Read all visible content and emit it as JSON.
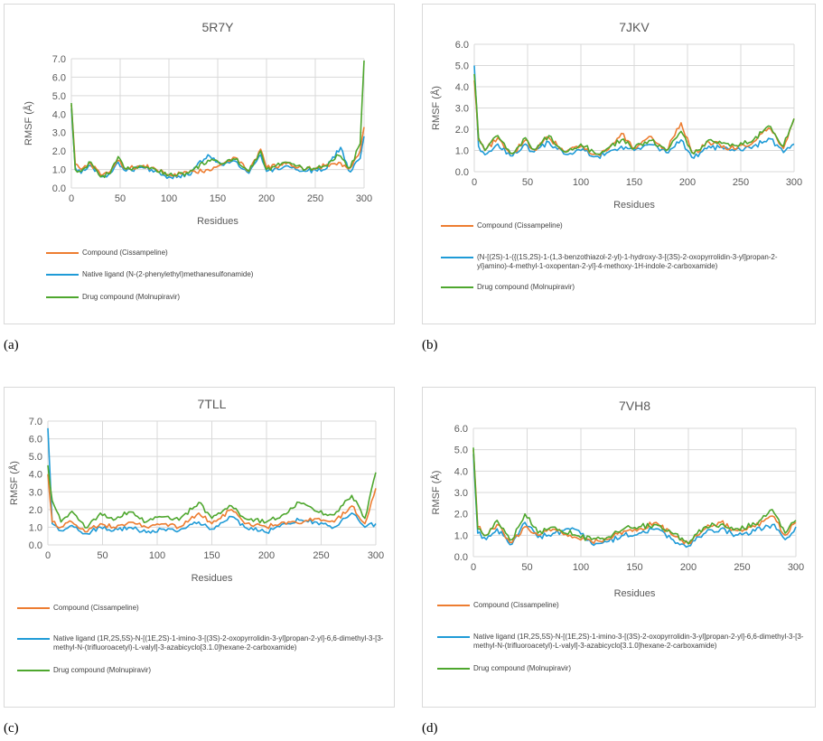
{
  "colors": {
    "compound": "#ED7D31",
    "native": "#1F9BD7",
    "drug": "#4EA72E",
    "grid": "#d9d9d9"
  },
  "chart_data": [
    {
      "id": "a",
      "type": "line",
      "title": "5R7Y",
      "xlabel": "Residues",
      "ylabel": "RMSF (Å)",
      "xlim": [
        0,
        300
      ],
      "ylim": [
        0,
        7
      ],
      "x_ticks": [
        "0",
        "50",
        "100",
        "150",
        "200",
        "250",
        "300"
      ],
      "y_ticks": [
        "0.0",
        "1.0",
        "2.0",
        "3.0",
        "4.0",
        "5.0",
        "6.0",
        "7.0"
      ],
      "series": [
        {
          "name": "Compound (Cissampeline)",
          "key": "compound",
          "x": [
            0,
            4,
            10,
            20,
            30,
            40,
            48,
            55,
            70,
            82,
            100,
            120,
            140,
            155,
            167,
            182,
            194,
            200,
            220,
            240,
            260,
            275,
            285,
            296,
            300
          ],
          "values": [
            4.5,
            1.3,
            1.0,
            1.3,
            0.7,
            0.9,
            1.5,
            1.0,
            1.2,
            1.1,
            0.7,
            0.8,
            1.0,
            1.3,
            1.7,
            0.9,
            2.1,
            1.1,
            1.3,
            1.0,
            1.2,
            1.4,
            1.0,
            2.0,
            3.3
          ]
        },
        {
          "name": "Native ligand (N-(2-phenylethyl)methanesulfonamide)",
          "key": "native",
          "x": [
            0,
            4,
            10,
            20,
            30,
            40,
            48,
            55,
            70,
            82,
            100,
            120,
            140,
            155,
            167,
            182,
            194,
            200,
            220,
            240,
            260,
            276,
            285,
            296,
            300
          ],
          "values": [
            4.3,
            1.1,
            0.8,
            1.2,
            0.6,
            0.8,
            1.4,
            0.9,
            1.1,
            1.0,
            0.6,
            0.7,
            1.8,
            1.2,
            1.5,
            0.8,
            1.8,
            0.9,
            1.2,
            0.9,
            1.0,
            2.2,
            0.8,
            1.6,
            2.8
          ]
        },
        {
          "name": "Drug compound (Molnupiravir)",
          "key": "drug",
          "x": [
            0,
            4,
            10,
            20,
            30,
            40,
            48,
            55,
            70,
            82,
            100,
            120,
            140,
            155,
            167,
            182,
            194,
            200,
            220,
            240,
            260,
            275,
            285,
            296,
            300
          ],
          "values": [
            4.6,
            1.0,
            0.9,
            1.4,
            0.6,
            0.8,
            1.7,
            1.0,
            1.2,
            1.1,
            0.7,
            0.8,
            1.5,
            1.3,
            1.6,
            0.9,
            2.0,
            1.0,
            1.4,
            1.0,
            1.2,
            1.8,
            1.0,
            2.4,
            6.9
          ]
        }
      ]
    },
    {
      "id": "b",
      "type": "line",
      "title": "7JKV",
      "xlabel": "Residues",
      "ylabel": "RMSF (Å)",
      "xlim": [
        0,
        300
      ],
      "ylim": [
        0,
        6
      ],
      "x_ticks": [
        "0",
        "50",
        "100",
        "150",
        "200",
        "250",
        "300"
      ],
      "y_ticks": [
        "0.0",
        "1.0",
        "2.0",
        "3.0",
        "4.0",
        "5.0",
        "6.0"
      ],
      "series": [
        {
          "name": "Compound (Cissampeline)",
          "key": "compound",
          "x": [
            0,
            4,
            10,
            22,
            35,
            48,
            55,
            70,
            85,
            100,
            115,
            125,
            138,
            150,
            165,
            180,
            194,
            205,
            220,
            240,
            260,
            277,
            290,
            300
          ],
          "values": [
            4.3,
            1.5,
            1.0,
            1.6,
            0.8,
            1.5,
            1.0,
            1.6,
            0.9,
            1.2,
            0.8,
            1.0,
            1.8,
            1.1,
            1.7,
            1.0,
            2.3,
            0.8,
            1.4,
            1.1,
            1.3,
            2.1,
            1.1,
            2.5
          ]
        },
        {
          "name": " (N-[(2S)-1-({(1S,2S)-1-(1,3-benzothiazol-2-yl)-1-hydroxy-3-[(3S)-2-oxopyrrolidin-3-yl]propan-2-yl}amino)-4-methyl-1-oxopentan-2-yl]-4-methoxy-1H-indole-2-carboxamide)",
          "key": "native",
          "x": [
            0,
            4,
            10,
            22,
            35,
            48,
            55,
            70,
            85,
            100,
            115,
            125,
            138,
            150,
            165,
            180,
            194,
            205,
            220,
            240,
            260,
            277,
            290,
            300
          ],
          "values": [
            5.0,
            1.2,
            0.8,
            1.3,
            0.7,
            1.3,
            0.9,
            1.4,
            0.8,
            1.0,
            0.7,
            0.9,
            1.2,
            1.0,
            1.3,
            0.9,
            1.5,
            0.6,
            1.2,
            1.0,
            1.1,
            1.6,
            0.9,
            1.3
          ]
        },
        {
          "name": "Drug compound (Molnupiravir)",
          "key": "drug",
          "x": [
            0,
            4,
            10,
            22,
            35,
            48,
            55,
            70,
            85,
            100,
            115,
            125,
            138,
            150,
            165,
            180,
            194,
            205,
            220,
            240,
            260,
            277,
            290,
            300
          ],
          "values": [
            4.6,
            1.6,
            1.0,
            1.7,
            0.8,
            1.6,
            1.0,
            1.7,
            0.9,
            1.3,
            0.8,
            1.1,
            1.5,
            1.1,
            1.5,
            1.0,
            1.9,
            0.8,
            1.5,
            1.2,
            1.4,
            2.2,
            1.2,
            2.5
          ]
        }
      ]
    },
    {
      "id": "c",
      "type": "line",
      "title": "7TLL",
      "xlabel": "Residues",
      "ylabel": "RMSF (Å)",
      "xlim": [
        0,
        300
      ],
      "ylim": [
        0,
        7
      ],
      "x_ticks": [
        "0",
        "50",
        "100",
        "150",
        "200",
        "250",
        "300"
      ],
      "y_ticks": [
        "0.0",
        "1.0",
        "2.0",
        "3.0",
        "4.0",
        "5.0",
        "6.0",
        "7.0"
      ],
      "series": [
        {
          "name": "Compound (Cissampeline)",
          "key": "compound",
          "x": [
            0,
            4,
            12,
            22,
            35,
            48,
            60,
            75,
            90,
            105,
            120,
            138,
            150,
            168,
            180,
            200,
            215,
            230,
            245,
            262,
            278,
            290,
            300
          ],
          "values": [
            4.0,
            1.3,
            1.0,
            1.3,
            0.7,
            1.2,
            1.0,
            1.3,
            1.0,
            1.2,
            1.0,
            1.8,
            1.2,
            2.0,
            1.2,
            1.0,
            1.3,
            1.2,
            1.5,
            1.3,
            2.2,
            1.2,
            3.2
          ]
        },
        {
          "name": "Native ligand (1R,2S,5S)-N-[(1E,2S)-1-imino-3-[(3S)-2-oxopyrrolidin-3-yl]propan-2-yl]-6,6-dimethyl-3-[3-methyl-N-(trifluoroacetyl)-L-valyl]-3-azabicyclo[3.1.0]hexane-2-carboxamide)",
          "key": "native",
          "x": [
            0,
            4,
            12,
            22,
            35,
            48,
            60,
            75,
            90,
            105,
            120,
            138,
            150,
            168,
            180,
            200,
            215,
            230,
            245,
            262,
            278,
            290,
            300
          ],
          "values": [
            6.6,
            1.2,
            0.8,
            1.1,
            0.6,
            1.0,
            0.8,
            1.0,
            0.7,
            0.9,
            0.8,
            1.3,
            0.9,
            1.6,
            1.0,
            0.7,
            1.2,
            1.4,
            1.3,
            1.0,
            1.8,
            1.0,
            1.2
          ]
        },
        {
          "name": "Drug compound (Molnupiravir)",
          "key": "drug",
          "x": [
            0,
            4,
            12,
            22,
            35,
            48,
            60,
            75,
            90,
            105,
            120,
            138,
            150,
            168,
            180,
            200,
            215,
            230,
            245,
            262,
            278,
            290,
            300
          ],
          "values": [
            4.5,
            2.5,
            1.3,
            1.9,
            0.9,
            1.8,
            1.4,
            1.9,
            1.3,
            1.6,
            1.4,
            2.4,
            1.5,
            2.2,
            1.5,
            1.3,
            1.7,
            2.4,
            1.9,
            1.7,
            2.8,
            1.5,
            4.1
          ]
        }
      ]
    },
    {
      "id": "d",
      "type": "line",
      "title": "7VH8",
      "xlabel": "Residues",
      "ylabel": "RMSF (Å)",
      "xlim": [
        0,
        300
      ],
      "ylim": [
        0,
        6
      ],
      "x_ticks": [
        "0",
        "50",
        "100",
        "150",
        "200",
        "250",
        "300"
      ],
      "y_ticks": [
        "0.0",
        "1.0",
        "2.0",
        "3.0",
        "4.0",
        "5.0",
        "6.0"
      ],
      "series": [
        {
          "name": "Compound (Cissampeline)",
          "key": "compound",
          "x": [
            0,
            4,
            12,
            22,
            35,
            48,
            60,
            75,
            95,
            110,
            125,
            140,
            155,
            170,
            185,
            200,
            215,
            230,
            245,
            262,
            278,
            290,
            300
          ],
          "values": [
            5.0,
            1.4,
            1.0,
            1.5,
            0.6,
            1.4,
            1.0,
            1.3,
            0.9,
            0.7,
            0.8,
            1.2,
            1.3,
            1.6,
            1.0,
            0.6,
            1.3,
            1.6,
            1.2,
            1.4,
            1.9,
            1.0,
            1.6
          ]
        },
        {
          "name": "Native ligand (1R,2S,5S)-N-[(1E,2S)-1-imino-3-[(3S)-2-oxopyrrolidin-3-yl]propan-2-yl]-6,6-dimethyl-3-[3-methyl-N-(trifluoroacetyl)-L-valyl]-3-azabicyclo[3.1.0]hexane-2-carboxamide)",
          "key": "native",
          "x": [
            0,
            4,
            12,
            22,
            35,
            48,
            60,
            75,
            95,
            110,
            125,
            140,
            155,
            170,
            185,
            200,
            215,
            230,
            245,
            262,
            278,
            290,
            300
          ],
          "values": [
            4.8,
            1.1,
            0.8,
            1.3,
            0.5,
            1.6,
            0.9,
            1.1,
            1.3,
            0.6,
            0.7,
            1.0,
            1.1,
            1.3,
            0.8,
            0.5,
            1.1,
            1.3,
            1.0,
            1.2,
            1.5,
            0.8,
            1.4
          ]
        },
        {
          "name": "Drug compound (Molnupiravir)",
          "key": "drug",
          "x": [
            0,
            4,
            12,
            22,
            35,
            48,
            60,
            75,
            95,
            110,
            125,
            140,
            155,
            170,
            185,
            200,
            215,
            230,
            245,
            262,
            278,
            290,
            300
          ],
          "values": [
            5.1,
            1.3,
            1.0,
            1.7,
            0.7,
            2.0,
            1.1,
            1.4,
            1.0,
            0.8,
            0.9,
            1.3,
            1.4,
            1.5,
            1.1,
            0.6,
            1.4,
            1.5,
            1.3,
            1.5,
            2.2,
            1.1,
            1.7
          ]
        }
      ]
    }
  ],
  "panel_labels": [
    "(a)",
    "(b)",
    "(c)",
    "(d)"
  ]
}
